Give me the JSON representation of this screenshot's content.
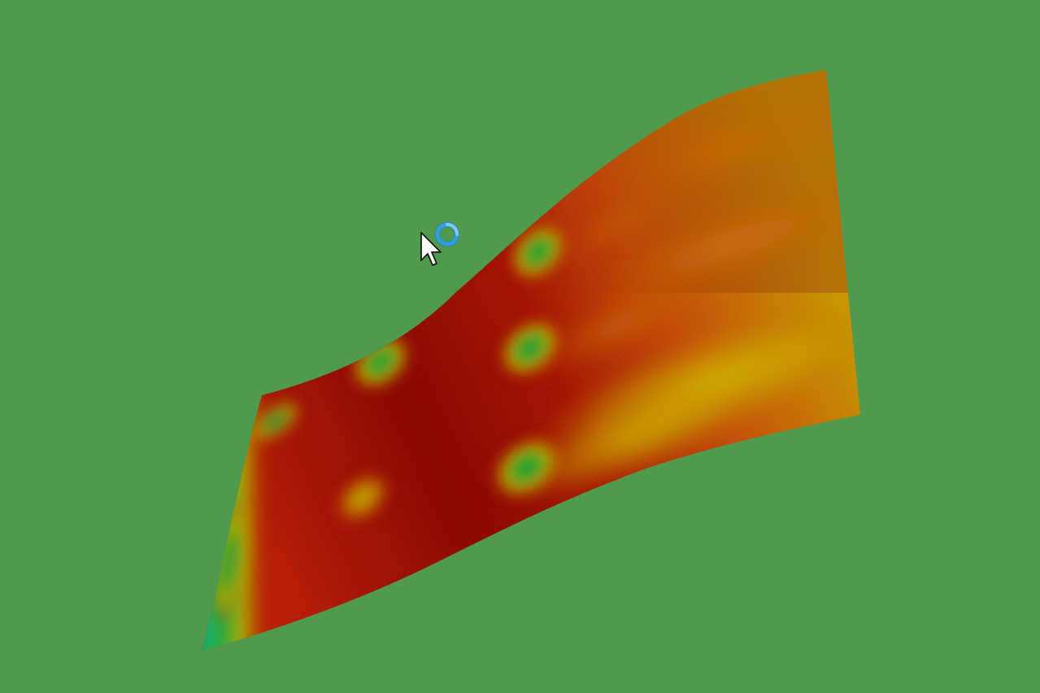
{
  "colors": {
    "background": "#4f9a4c",
    "surface_deep_red": "#8a0a04",
    "surface_red": "#b81e08",
    "surface_orange": "#d06a0c",
    "surface_yellow": "#c8b600",
    "surface_green": "#10a030",
    "surface_teal": "#14b070",
    "busy_ring": "#2f9ee8",
    "cursor_fill": "#ffffff",
    "cursor_stroke": "#1a1a1a"
  },
  "cursor": {
    "pointer_icon": "arrow-pointer-icon",
    "busy_icon": "busy-spinner-icon"
  }
}
